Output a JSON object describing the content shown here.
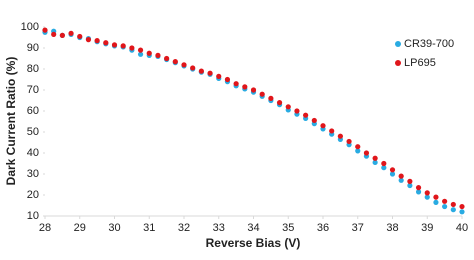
{
  "chart_data": {
    "type": "scatter",
    "x_label": "Reverse Bias (V)",
    "y_label": "Dark Current Ratio (%)",
    "x": [
      28,
      28.25,
      28.5,
      28.75,
      29,
      29.25,
      29.5,
      29.75,
      30,
      30.25,
      30.5,
      30.75,
      31,
      31.25,
      31.5,
      31.75,
      32,
      32.25,
      32.5,
      32.75,
      33,
      33.25,
      33.5,
      33.75,
      34,
      34.25,
      34.5,
      34.75,
      35,
      35.25,
      35.5,
      35.75,
      36,
      36.25,
      36.5,
      36.75,
      37,
      37.25,
      37.5,
      37.75,
      38,
      38.25,
      38.5,
      38.75,
      39,
      39.25,
      39.5,
      39.75,
      40
    ],
    "series": [
      {
        "name": "CR39-700",
        "color": "#29abe2",
        "values": [
          97.5,
          98,
          96,
          96.5,
          95,
          94.5,
          93,
          92,
          91,
          90.5,
          89,
          87,
          86.5,
          86,
          84.5,
          83,
          81.5,
          80,
          78.5,
          77.5,
          75.5,
          74,
          72,
          70.5,
          69,
          67,
          65,
          63,
          60.5,
          58.5,
          56.5,
          54,
          51.5,
          49,
          46.5,
          44,
          41,
          38.5,
          35.5,
          33,
          30,
          27,
          24.5,
          21.5,
          19,
          16.5,
          14.5,
          13,
          12
        ]
      },
      {
        "name": "LP695",
        "color": "#e0161b",
        "values": [
          98.5,
          96.5,
          96,
          97,
          95.5,
          94,
          93.5,
          92.5,
          91.5,
          91,
          90,
          89,
          87.5,
          86.5,
          85,
          83.5,
          82,
          80.5,
          79,
          78,
          76.5,
          75,
          73,
          71.5,
          70,
          68,
          66,
          64,
          62,
          60,
          58,
          55.5,
          53,
          50.5,
          48,
          45.5,
          43,
          40,
          37.5,
          35,
          32,
          29,
          26.5,
          23.5,
          21,
          19,
          17,
          15.5,
          14.5
        ]
      }
    ],
    "xlim": [
      28,
      40
    ],
    "xticks": [
      28,
      29,
      30,
      31,
      32,
      33,
      34,
      35,
      36,
      37,
      38,
      39,
      40
    ],
    "ylim": [
      10,
      100
    ],
    "yticks": [
      10,
      20,
      30,
      40,
      50,
      60,
      70,
      80,
      90,
      100
    ],
    "grid": false,
    "legend_position": "upper right"
  }
}
